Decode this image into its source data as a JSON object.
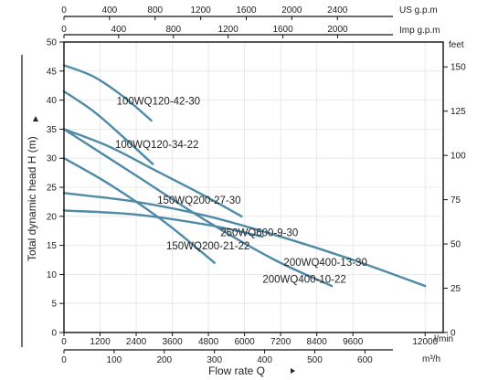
{
  "chart_data": {
    "type": "line",
    "title": "",
    "xlabel": "Flow rate Q",
    "ylabel": "Total dynamic head H (m)",
    "grid": true,
    "xlim": [
      0,
      12600
    ],
    "ylim": [
      0,
      50
    ],
    "x_unit": "l/min",
    "x_ticks": [
      0,
      1200,
      2400,
      3600,
      4800,
      6000,
      7200,
      8400,
      9600,
      12000
    ],
    "y_ticks": [
      0,
      5,
      10,
      15,
      20,
      25,
      30,
      35,
      40,
      45,
      50
    ],
    "secondary_axes": {
      "m3h": {
        "unit": "m³/h",
        "ticks": [
          0,
          100,
          200,
          300,
          400,
          500,
          600
        ]
      },
      "us_gpm": {
        "unit": "US g.p.m",
        "ticks": [
          0,
          400,
          800,
          1200,
          1600,
          2000,
          2400
        ]
      },
      "imp_gpm": {
        "unit": "Imp g.p.m",
        "ticks": [
          0,
          400,
          800,
          1200,
          1600,
          2000
        ]
      },
      "feet": {
        "unit": "feet",
        "ticks": [
          0,
          25,
          50,
          75,
          100,
          125,
          150
        ]
      }
    },
    "series": [
      {
        "name": "100WQ120-42-30",
        "color": "#4f8aa6",
        "x": [
          0,
          1000,
          2000,
          2900
        ],
        "y": [
          46,
          44,
          40.5,
          36.5
        ]
      },
      {
        "name": "100WQ120-34-22",
        "color": "#4f8aa6",
        "x": [
          0,
          1000,
          2000,
          2950
        ],
        "y": [
          41.5,
          38,
          33.5,
          29
        ]
      },
      {
        "name": "150WQ200-27-30",
        "color": "#4f8aa6",
        "x": [
          0,
          1500,
          3000,
          4500,
          5900
        ],
        "y": [
          35,
          32,
          28,
          24,
          20
        ]
      },
      {
        "name": "150WQ200-21-22",
        "color": "#4f8aa6",
        "x": [
          0,
          1200,
          2400,
          3600,
          5000
        ],
        "y": [
          30,
          26.5,
          22.5,
          18,
          12
        ]
      },
      {
        "name": "200WQ400-13-30",
        "color": "#4f8aa6",
        "x": [
          0,
          2400,
          4800,
          7200,
          9600,
          12000
        ],
        "y": [
          24,
          22.5,
          20,
          16.5,
          12.5,
          8
        ]
      },
      {
        "name": "200WQ400-10-22",
        "color": "#4f8aa6",
        "x": [
          0,
          2400,
          4800,
          7000,
          8900
        ],
        "y": [
          35,
          27,
          19,
          12.5,
          8
        ]
      },
      {
        "name": "250WQ600-9-30",
        "color": "#4f8aa6",
        "x": [
          0,
          2400,
          4800,
          6600
        ],
        "y": [
          21,
          20.3,
          18.5,
          16.5
        ]
      }
    ]
  }
}
